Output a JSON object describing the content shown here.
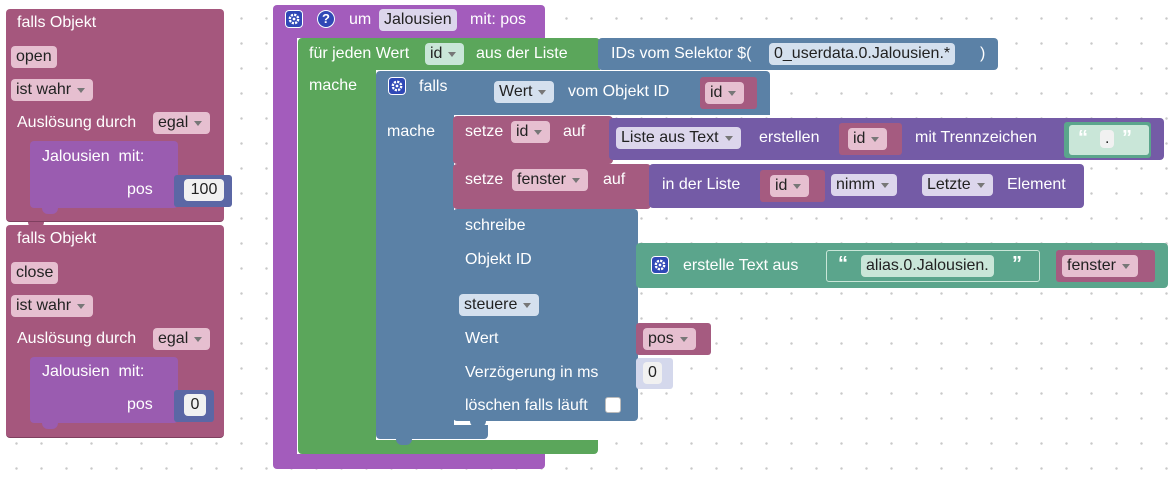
{
  "trigger_open": {
    "title": "falls Objekt",
    "object": "open",
    "condition": "ist wahr",
    "trigger_label": "Auslösung durch",
    "trigger_value": "egal",
    "call_name": "Jalousien",
    "call_with": "mit:",
    "param_label": "pos",
    "param_value": "100"
  },
  "trigger_close": {
    "title": "falls Objekt",
    "object": "close",
    "condition": "ist wahr",
    "trigger_label": "Auslösung durch",
    "trigger_value": "egal",
    "call_name": "Jalousien",
    "call_with": "mit:",
    "param_label": "pos",
    "param_value": "0"
  },
  "function": {
    "prefix": "um",
    "name": "Jalousien",
    "with": "mit: pos",
    "help": "?"
  },
  "foreach": {
    "label": "für jeden Wert",
    "var": "id",
    "from_list": "aus der Liste",
    "do": "mache",
    "selector_label": "IDs vom Selektor $(",
    "selector_value": "0_userdata.0.Jalousien.*",
    "selector_close": ")"
  },
  "if_block": {
    "label": "falls",
    "do": "mache",
    "cond_value": "Wert",
    "cond_of": "vom Objekt ID",
    "cond_var": "id"
  },
  "set_id": {
    "label": "setze",
    "var": "id",
    "to": "auf",
    "list_text": "Liste aus Text",
    "create": "erstellen",
    "source": "id",
    "delimiter_label": "mit Trennzeichen",
    "delimiter": "."
  },
  "set_fenster": {
    "label": "setze",
    "var": "fenster",
    "to": "auf",
    "in_list": "in der Liste",
    "list_var": "id",
    "take": "nimm",
    "which": "Letzte",
    "element": "Element"
  },
  "write_block": {
    "label": "schreibe",
    "object_id": "Objekt ID",
    "text_join": "erstelle Text aus",
    "text_string": "alias.0.Jalousien.",
    "text_var": "fenster",
    "mode": "steuere",
    "value_label": "Wert",
    "value_var": "pos",
    "delay_label": "Verzögerung in ms",
    "delay_value": "0",
    "clear_label": "löschen falls läuft"
  },
  "colors": {
    "event": "#a5577d",
    "event_sub": "#9a5cb0",
    "procedure": "#a35cbc",
    "loop": "#5ba65b",
    "logic": "#5b81a6",
    "variable": "#a55b80",
    "list": "#745ba6",
    "text": "#5ba58c",
    "number": "#5b67a5"
  },
  "icons": [
    "gear-icon",
    "help-icon",
    "open-quote-icon",
    "close-quote-icon"
  ]
}
